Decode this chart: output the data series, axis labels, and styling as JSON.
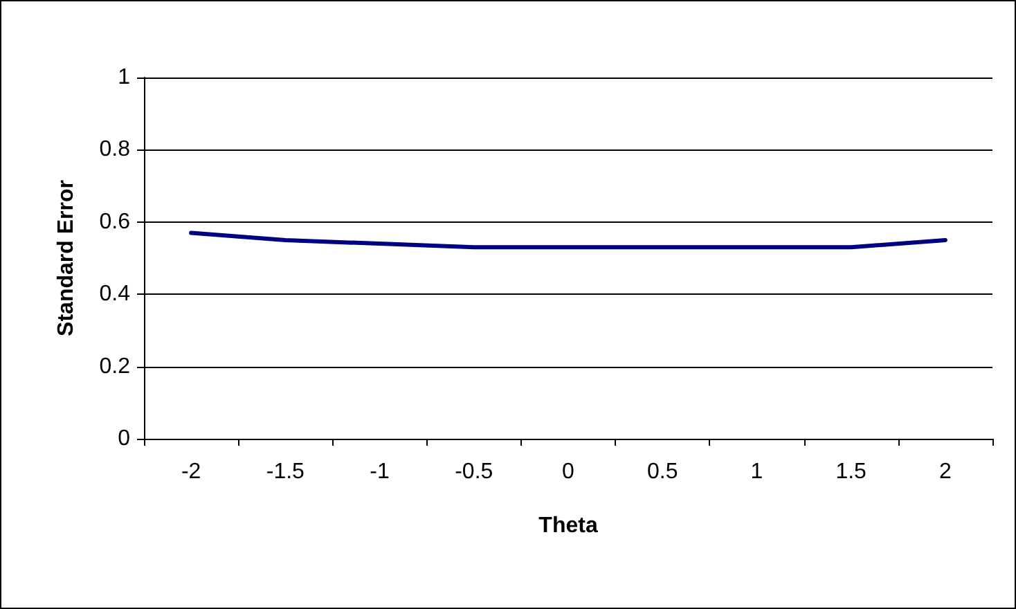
{
  "chart_data": {
    "type": "line",
    "xlabel": "Theta",
    "ylabel": "Standard Error",
    "categories": [
      "-2",
      "-1.5",
      "-1",
      "-0.5",
      "0",
      "0.5",
      "1",
      "1.5",
      "2"
    ],
    "series": [
      {
        "color": "#000080",
        "values": [
          0.57,
          0.55,
          0.54,
          0.53,
          0.53,
          0.53,
          0.53,
          0.53,
          0.55
        ]
      }
    ],
    "ylim": [
      0,
      1
    ],
    "yticks": [
      0,
      0.2,
      0.4,
      0.6,
      0.8,
      1
    ],
    "grid": "y",
    "marker": "none",
    "line_style": "solid"
  }
}
